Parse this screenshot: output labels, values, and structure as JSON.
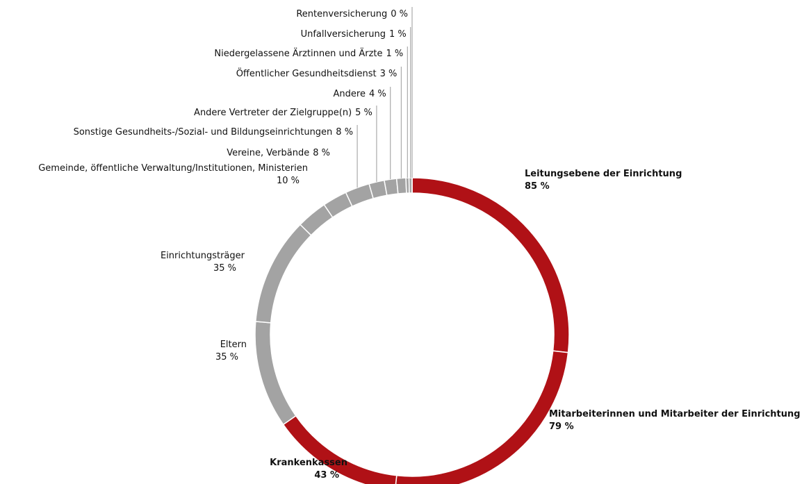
{
  "chart_data": {
    "type": "donut",
    "categories": [
      "Leitungsebene der Einrichtung",
      "Mitarbeiterinnen und Mitarbeiter der Einrichtung",
      "Krankenkassen",
      "Eltern",
      "Einrichtungsträger",
      "Gemeinde, öffentliche Verwaltung/Institutionen, Ministerien",
      "Vereine, Verbände",
      "Sonstige Gesundheits-/Sozial- und Bildungseinrichtungen",
      "Andere Vertreter der Zielgruppe(n)",
      "Andere",
      "Öffentlicher Gesundheitsdienst",
      "Niedergelassene Ärztinnen und Ärzte",
      "Unfallversicherung",
      "Rentenversicherung"
    ],
    "values": [
      85,
      79,
      43,
      35,
      35,
      10,
      8,
      8,
      5,
      4,
      3,
      1,
      1,
      0
    ],
    "value_labels": [
      "85 %",
      "79 %",
      "43 %",
      "35 %",
      "35 %",
      "10 %",
      "8 %",
      "8 %",
      "5 %",
      "4 %",
      "3 %",
      "1 %",
      "1 %",
      "0 %"
    ],
    "colors": [
      "#b01116",
      "#b01116",
      "#b01116",
      "#a3a3a3",
      "#a3a3a3",
      "#a3a3a3",
      "#a3a3a3",
      "#a3a3a3",
      "#a3a3a3",
      "#a3a3a3",
      "#a3a3a3",
      "#a3a3a3",
      "#a3a3a3",
      "#a3a3a3"
    ]
  }
}
